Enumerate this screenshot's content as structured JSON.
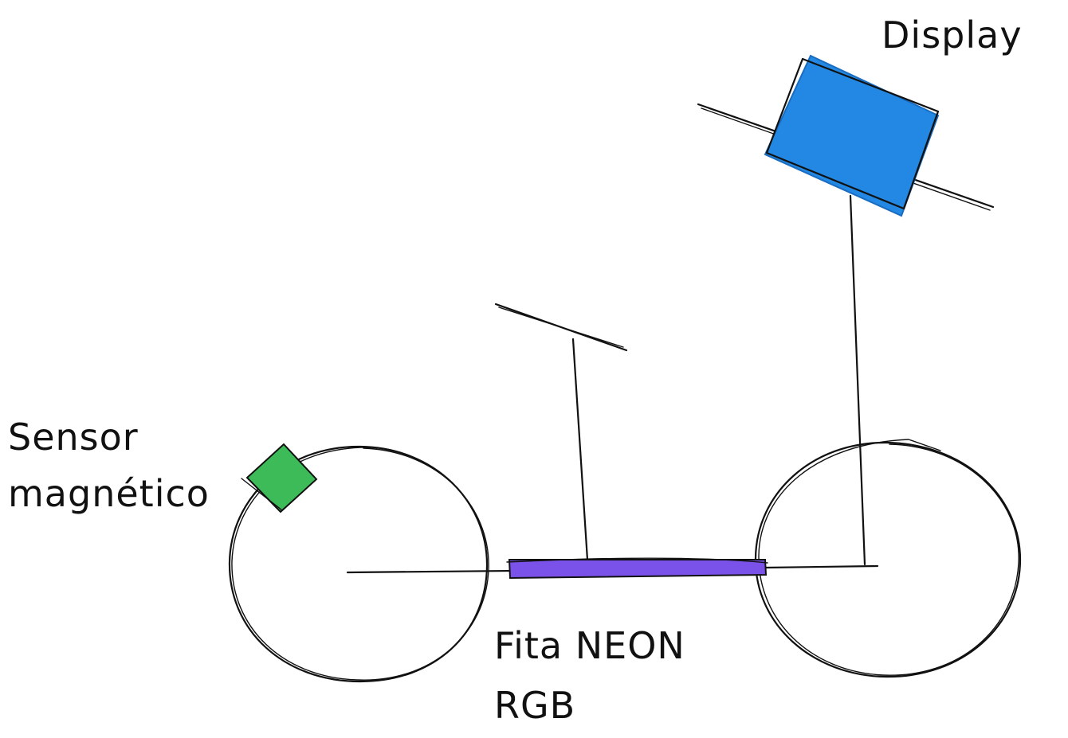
{
  "labels": {
    "display": "Display",
    "sensor_line1": "Sensor",
    "sensor_line2": "magnético",
    "neon_line1": "Fita NEON",
    "neon_line2": "RGB"
  },
  "colors": {
    "ink": "#111111",
    "display": "#2288e3",
    "sensor": "#3dbb59",
    "neon": "#7a52ea"
  }
}
